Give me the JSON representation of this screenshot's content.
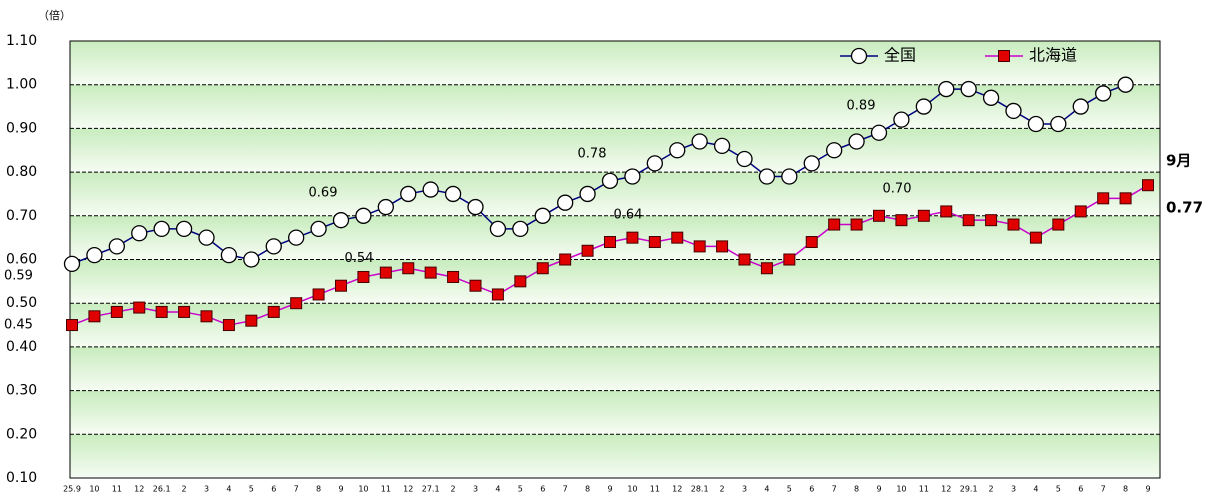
{
  "chart_data": {
    "type": "line",
    "y_unit": "（倍）",
    "categories": [
      "25.9",
      "10",
      "11",
      "12",
      "26.1",
      "2",
      "3",
      "4",
      "5",
      "6",
      "7",
      "8",
      "9",
      "10",
      "11",
      "12",
      "27.1",
      "2",
      "3",
      "4",
      "5",
      "6",
      "7",
      "8",
      "9",
      "10",
      "11",
      "12",
      "28.1",
      "2",
      "3",
      "4",
      "5",
      "6",
      "7",
      "8",
      "9",
      "10",
      "11",
      "12",
      "29.1",
      "2",
      "3",
      "4",
      "5",
      "6",
      "7",
      "8",
      "9"
    ],
    "series": [
      {
        "name": "全国",
        "color": "#000080",
        "marker": "circle",
        "values": [
          0.59,
          0.61,
          0.63,
          0.66,
          0.67,
          0.67,
          0.65,
          0.61,
          0.6,
          0.63,
          0.65,
          0.67,
          0.69,
          0.7,
          0.72,
          0.75,
          0.76,
          0.75,
          0.72,
          0.67,
          0.67,
          0.7,
          0.73,
          0.75,
          0.78,
          0.79,
          0.82,
          0.85,
          0.87,
          0.86,
          0.83,
          0.79,
          0.79,
          0.82,
          0.85,
          0.87,
          0.89,
          0.92,
          0.95,
          0.99,
          0.99,
          0.97,
          0.94,
          0.91,
          0.91,
          0.95,
          0.98,
          1.0,
          null
        ]
      },
      {
        "name": "北海道",
        "color": "#cc00cc",
        "marker": "square",
        "values": [
          0.45,
          0.47,
          0.48,
          0.49,
          0.48,
          0.48,
          0.47,
          0.45,
          0.46,
          0.48,
          0.5,
          0.52,
          0.54,
          0.56,
          0.57,
          0.58,
          0.57,
          0.56,
          0.54,
          0.52,
          0.55,
          0.58,
          0.6,
          0.62,
          0.64,
          0.65,
          0.64,
          0.65,
          0.63,
          0.63,
          0.6,
          0.58,
          0.6,
          0.64,
          0.68,
          0.68,
          0.7,
          0.69,
          0.7,
          0.71,
          0.69,
          0.69,
          0.68,
          0.65,
          0.68,
          0.71,
          0.74,
          0.74,
          0.77
        ]
      }
    ],
    "annotations": [
      {
        "series": 0,
        "point": 0,
        "text": "0.59"
      },
      {
        "series": 1,
        "point": 0,
        "text": "0.45"
      },
      {
        "series": 0,
        "point": 12,
        "text": "0.69"
      },
      {
        "series": 1,
        "point": 12,
        "text": "0.54"
      },
      {
        "series": 0,
        "point": 24,
        "text": "0.78"
      },
      {
        "series": 1,
        "point": 24,
        "text": "0.64"
      },
      {
        "series": 0,
        "point": 36,
        "text": "0.89"
      },
      {
        "series": 1,
        "point": 36,
        "text": "0.70"
      },
      {
        "series": 1,
        "point": 48,
        "text": "0.77",
        "heading": "9月"
      }
    ],
    "ylim": [
      0.1,
      1.1
    ],
    "yticks": [
      {
        "value": 0.1,
        "label": "0.10"
      },
      {
        "value": 0.2,
        "label": "0.20"
      },
      {
        "value": 0.3,
        "label": "0.30"
      },
      {
        "value": 0.4,
        "label": "0.40"
      },
      {
        "value": 0.5,
        "label": "0.50"
      },
      {
        "value": 0.6,
        "label": "0.60"
      },
      {
        "value": 0.7,
        "label": "0.70"
      },
      {
        "value": 0.8,
        "label": "0.80"
      },
      {
        "value": 0.9,
        "label": "0.90"
      },
      {
        "value": 1.0,
        "label": "1.00"
      },
      {
        "value": 1.1,
        "label": "1.10"
      }
    ],
    "grid": true,
    "legend": "top-right"
  }
}
